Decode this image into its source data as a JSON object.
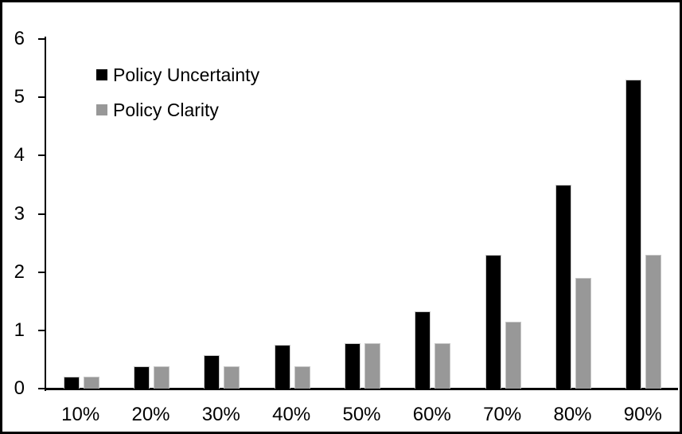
{
  "chart_data": {
    "type": "bar",
    "title": "",
    "xlabel": "",
    "ylabel": "",
    "categories": [
      "10%",
      "20%",
      "30%",
      "40%",
      "50%",
      "60%",
      "70%",
      "80%",
      "90%"
    ],
    "series": [
      {
        "name": "Policy Uncertainty",
        "color": "#000000",
        "values": [
          0.2,
          0.38,
          0.57,
          0.75,
          0.78,
          1.33,
          2.3,
          3.5,
          5.3
        ]
      },
      {
        "name": "Policy Clarity",
        "color": "#989898",
        "values": [
          0.2,
          0.38,
          0.38,
          0.38,
          0.78,
          0.78,
          1.15,
          1.9,
          2.3
        ]
      }
    ],
    "ylim": [
      0,
      6
    ],
    "yticks": [
      0,
      1,
      2,
      3,
      4,
      5,
      6
    ],
    "grid": false,
    "legend_position": "top-left",
    "axis_color": "#000000",
    "background_color": "#ffffff",
    "border_color": "#000000"
  }
}
